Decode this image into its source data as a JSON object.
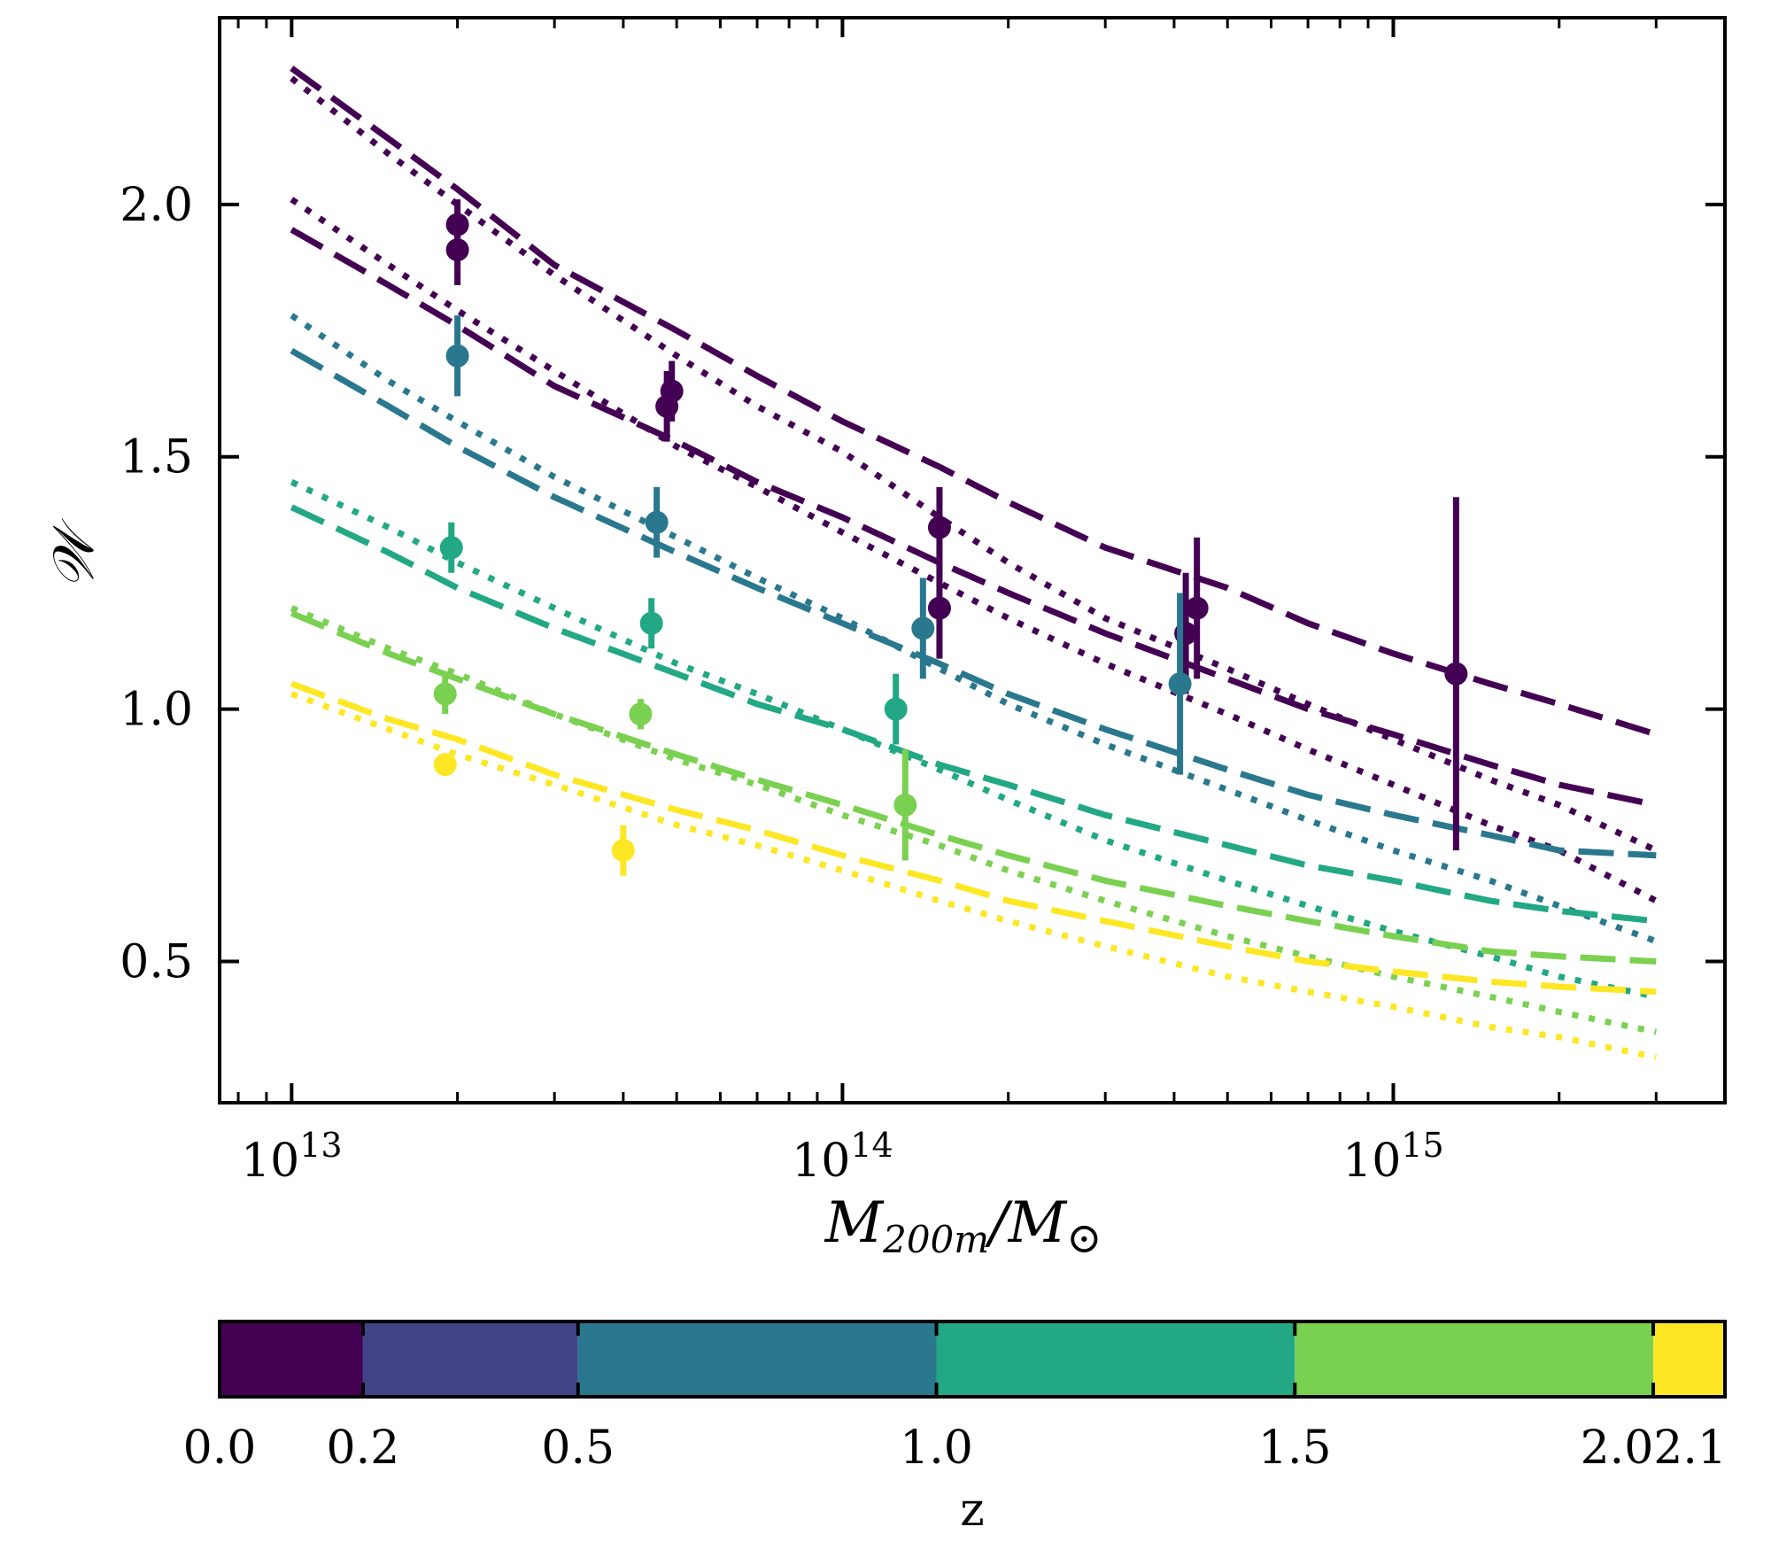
{
  "chart_data": {
    "type": "line",
    "title": "",
    "xlabel": "M200m/M⊙",
    "xlabel_main": "M",
    "xlabel_sub": "200m",
    "xlabel_tail": "/M",
    "xlabel_symbol": "⊙",
    "ylabel": "𝒲",
    "xscale": "log",
    "xlim": [
      7400000000000.0,
      4000000000000000.0
    ],
    "ylim": [
      0.22,
      2.37
    ],
    "x_tick_labels": [
      {
        "base": "10",
        "exp": "13",
        "value": 10000000000000.0
      },
      {
        "base": "10",
        "exp": "14",
        "value": 100000000000000.0
      },
      {
        "base": "10",
        "exp": "15",
        "value": 1000000000000000.0
      }
    ],
    "y_ticks": [
      0.5,
      1.0,
      1.5,
      2.0
    ],
    "y_tick_labels": [
      "0.5",
      "1.0",
      "1.5",
      "2.0"
    ],
    "colors": {
      "z0.0": "#440154",
      "z0.2": "#414487",
      "z0.5": "#2a788e",
      "z1.0": "#22a884",
      "z1.5": "#7ad151",
      "z2.0": "#fde725"
    },
    "model_x": [
      10000000000000.0,
      15000000000000.0,
      20000000000000.0,
      30000000000000.0,
      50000000000000.0,
      70000000000000.0,
      100000000000000.0,
      150000000000000.0,
      200000000000000.0,
      300000000000000.0,
      500000000000000.0,
      700000000000000.0,
      1000000000000000.0,
      1500000000000000.0,
      2000000000000000.0,
      3000000000000000.0
    ],
    "series": [
      {
        "name": "z=0.0 dashed A",
        "z": "0.0",
        "style": "dashed",
        "color": "#440154",
        "values": [
          2.27,
          2.13,
          2.03,
          1.88,
          1.75,
          1.66,
          1.57,
          1.48,
          1.41,
          1.32,
          1.24,
          1.17,
          1.11,
          1.05,
          1.01,
          0.95
        ]
      },
      {
        "name": "z=0.0 dotted A",
        "z": "0.0",
        "style": "dotted",
        "color": "#440154",
        "values": [
          2.25,
          2.1,
          2.0,
          1.86,
          1.7,
          1.6,
          1.51,
          1.38,
          1.29,
          1.18,
          1.08,
          1.01,
          0.94,
          0.86,
          0.81,
          0.72
        ]
      },
      {
        "name": "z=0.0 dotted B",
        "z": "0.0",
        "style": "dotted",
        "color": "#440154",
        "values": [
          2.01,
          1.88,
          1.79,
          1.67,
          1.52,
          1.44,
          1.35,
          1.25,
          1.18,
          1.09,
          0.99,
          0.92,
          0.85,
          0.77,
          0.72,
          0.62
        ]
      },
      {
        "name": "z=0.0 dashed B",
        "z": "0.0",
        "style": "dashed",
        "color": "#440154",
        "values": [
          1.95,
          1.84,
          1.76,
          1.64,
          1.53,
          1.45,
          1.38,
          1.29,
          1.23,
          1.15,
          1.06,
          1.0,
          0.95,
          0.89,
          0.85,
          0.81
        ]
      },
      {
        "name": "z=0.5 dotted",
        "z": "0.5",
        "style": "dotted",
        "color": "#2a788e",
        "values": [
          1.78,
          1.65,
          1.57,
          1.46,
          1.34,
          1.26,
          1.18,
          1.08,
          1.01,
          0.93,
          0.84,
          0.78,
          0.72,
          0.66,
          0.61,
          0.54
        ]
      },
      {
        "name": "z=0.5 dashed",
        "z": "0.5",
        "style": "dashed",
        "color": "#2a788e",
        "values": [
          1.71,
          1.6,
          1.52,
          1.42,
          1.31,
          1.24,
          1.17,
          1.09,
          1.03,
          0.96,
          0.88,
          0.83,
          0.79,
          0.75,
          0.72,
          0.71
        ]
      },
      {
        "name": "z=1.0 dotted",
        "z": "1.0",
        "style": "dotted",
        "color": "#22a884",
        "values": [
          1.45,
          1.36,
          1.29,
          1.2,
          1.09,
          1.03,
          0.96,
          0.88,
          0.82,
          0.74,
          0.66,
          0.61,
          0.56,
          0.51,
          0.47,
          0.43
        ]
      },
      {
        "name": "z=1.0 dashed",
        "z": "1.0",
        "style": "dashed",
        "color": "#22a884",
        "values": [
          1.4,
          1.31,
          1.24,
          1.16,
          1.07,
          1.01,
          0.96,
          0.89,
          0.85,
          0.79,
          0.73,
          0.69,
          0.66,
          0.62,
          0.6,
          0.58
        ]
      },
      {
        "name": "z=1.5 dotted",
        "z": "1.5",
        "style": "dotted",
        "color": "#7ad151",
        "values": [
          1.2,
          1.12,
          1.07,
          0.99,
          0.9,
          0.85,
          0.79,
          0.73,
          0.68,
          0.62,
          0.55,
          0.51,
          0.47,
          0.43,
          0.4,
          0.36
        ]
      },
      {
        "name": "z=1.5 dashed",
        "z": "1.5",
        "style": "dashed",
        "color": "#7ad151",
        "values": [
          1.19,
          1.11,
          1.06,
          0.99,
          0.91,
          0.86,
          0.81,
          0.75,
          0.71,
          0.66,
          0.61,
          0.58,
          0.55,
          0.52,
          0.51,
          0.5
        ]
      },
      {
        "name": "z=2.0 dashed",
        "z": "2.0",
        "style": "dashed",
        "color": "#fde725",
        "values": [
          1.05,
          0.98,
          0.94,
          0.87,
          0.8,
          0.76,
          0.71,
          0.66,
          0.62,
          0.58,
          0.53,
          0.5,
          0.48,
          0.46,
          0.45,
          0.44
        ]
      },
      {
        "name": "z=2.0 dotted",
        "z": "2.0",
        "style": "dotted",
        "color": "#fde725",
        "values": [
          1.03,
          0.96,
          0.91,
          0.85,
          0.77,
          0.73,
          0.68,
          0.62,
          0.58,
          0.53,
          0.47,
          0.44,
          0.41,
          0.37,
          0.35,
          0.31
        ]
      }
    ],
    "points": [
      {
        "z": "0.0",
        "color": "#440154",
        "x": 20000000000000.0,
        "y": 1.96,
        "err": 0.05
      },
      {
        "z": "0.0",
        "color": "#440154",
        "x": 20000000000000.0,
        "y": 1.91,
        "err": 0.07
      },
      {
        "z": "0.0",
        "color": "#440154",
        "x": 49000000000000.0,
        "y": 1.63,
        "err": 0.06
      },
      {
        "z": "0.0",
        "color": "#440154",
        "x": 48000000000000.0,
        "y": 1.6,
        "err": 0.07
      },
      {
        "z": "0.0",
        "color": "#440154",
        "x": 150000000000000.0,
        "y": 1.36,
        "err": 0.08
      },
      {
        "z": "0.0",
        "color": "#440154",
        "x": 150000000000000.0,
        "y": 1.2,
        "err": 0.1
      },
      {
        "z": "0.0",
        "color": "#440154",
        "x": 440000000000000.0,
        "y": 1.2,
        "err": 0.14
      },
      {
        "z": "0.0",
        "color": "#440154",
        "x": 420000000000000.0,
        "y": 1.15,
        "err": 0.12
      },
      {
        "z": "0.0",
        "color": "#440154",
        "x": 1300000000000000.0,
        "y": 1.07,
        "err": 0.35
      },
      {
        "z": "0.5",
        "color": "#2a788e",
        "x": 20000000000000.0,
        "y": 1.7,
        "err": 0.08
      },
      {
        "z": "0.5",
        "color": "#2a788e",
        "x": 46000000000000.0,
        "y": 1.37,
        "err": 0.07
      },
      {
        "z": "0.5",
        "color": "#2a788e",
        "x": 140000000000000.0,
        "y": 1.16,
        "err": 0.1
      },
      {
        "z": "0.5",
        "color": "#2a788e",
        "x": 410000000000000.0,
        "y": 1.05,
        "err": 0.18
      },
      {
        "z": "1.0",
        "color": "#22a884",
        "x": 19500000000000.0,
        "y": 1.32,
        "err": 0.05
      },
      {
        "z": "1.0",
        "color": "#22a884",
        "x": 45000000000000.0,
        "y": 1.17,
        "err": 0.05
      },
      {
        "z": "1.0",
        "color": "#22a884",
        "x": 125000000000000.0,
        "y": 1.0,
        "err": 0.07
      },
      {
        "z": "1.5",
        "color": "#7ad151",
        "x": 19000000000000.0,
        "y": 1.03,
        "err": 0.04
      },
      {
        "z": "1.5",
        "color": "#7ad151",
        "x": 43000000000000.0,
        "y": 0.99,
        "err": 0.03
      },
      {
        "z": "1.5",
        "color": "#7ad151",
        "x": 130000000000000.0,
        "y": 0.81,
        "err": 0.11
      },
      {
        "z": "2.0",
        "color": "#fde725",
        "x": 19000000000000.0,
        "y": 0.89,
        "err": 0.02
      },
      {
        "z": "2.0",
        "color": "#fde725",
        "x": 40000000000000.0,
        "y": 0.72,
        "err": 0.05
      }
    ],
    "colorbar": {
      "label": "z",
      "range": [
        0.0,
        2.1
      ],
      "segments": [
        {
          "from": 0.0,
          "to": 0.2,
          "color": "#440154"
        },
        {
          "from": 0.2,
          "to": 0.5,
          "color": "#414487"
        },
        {
          "from": 0.5,
          "to": 1.0,
          "color": "#2a788e"
        },
        {
          "from": 1.0,
          "to": 1.5,
          "color": "#22a884"
        },
        {
          "from": 1.5,
          "to": 2.0,
          "color": "#7ad151"
        },
        {
          "from": 2.0,
          "to": 2.1,
          "color": "#fde725"
        }
      ],
      "ticks": [
        0.0,
        0.2,
        0.5,
        1.0,
        1.5,
        2.0,
        2.1
      ],
      "tick_labels": [
        "0.0",
        "0.2",
        "0.5",
        "1.0",
        "1.5",
        "2.0",
        "2.1"
      ]
    }
  }
}
